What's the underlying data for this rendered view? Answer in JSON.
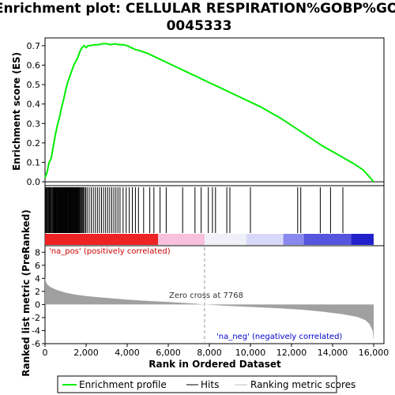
{
  "chart_data": [
    {
      "type": "line",
      "title_line1": "Enrichment plot: CELLULAR RESPIRATION%GOBP%GO:",
      "title_line2": "0045333",
      "ylabel": "Enrichment score (ES)",
      "xlim": [
        0,
        16500
      ],
      "ylim": [
        -0.02,
        0.74
      ],
      "yticks": [
        "0.0",
        "0.1",
        "0.2",
        "0.3",
        "0.4",
        "0.5",
        "0.6",
        "0.7"
      ],
      "ytick_values": [
        0,
        0.1,
        0.2,
        0.3,
        0.4,
        0.5,
        0.6,
        0.7
      ],
      "series": [
        {
          "name": "Enrichment profile",
          "color": "#00ee00",
          "x": [
            0,
            100,
            200,
            300,
            400,
            500,
            600,
            700,
            800,
            900,
            1000,
            1100,
            1200,
            1300,
            1400,
            1500,
            1600,
            1700,
            1800,
            1900,
            2000,
            2100,
            2200,
            2400,
            2600,
            2800,
            3000,
            3200,
            3400,
            3600,
            3800,
            4000,
            4200,
            4400,
            4600,
            5000,
            5500,
            6000,
            6500,
            7000,
            7500,
            8000,
            8500,
            9000,
            9500,
            10000,
            10500,
            11000,
            11500,
            12000,
            12500,
            13000,
            13500,
            14000,
            14500,
            15000,
            15500,
            16000
          ],
          "y": [
            0.02,
            0.05,
            0.1,
            0.12,
            0.18,
            0.24,
            0.29,
            0.33,
            0.38,
            0.42,
            0.47,
            0.51,
            0.54,
            0.57,
            0.6,
            0.62,
            0.64,
            0.67,
            0.69,
            0.7,
            0.69,
            0.7,
            0.7,
            0.705,
            0.705,
            0.71,
            0.71,
            0.705,
            0.71,
            0.705,
            0.705,
            0.7,
            0.69,
            0.68,
            0.675,
            0.66,
            0.635,
            0.61,
            0.585,
            0.56,
            0.535,
            0.51,
            0.485,
            0.46,
            0.435,
            0.41,
            0.385,
            0.355,
            0.325,
            0.29,
            0.255,
            0.22,
            0.185,
            0.155,
            0.125,
            0.095,
            0.06,
            0.0
          ]
        }
      ]
    },
    {
      "type": "barcode",
      "hits_note": "gene set member positions (ranks)",
      "hits": [
        40,
        70,
        110,
        150,
        190,
        230,
        260,
        300,
        340,
        380,
        410,
        440,
        470,
        500,
        530,
        560,
        590,
        620,
        650,
        680,
        710,
        740,
        770,
        800,
        830,
        860,
        890,
        920,
        950,
        980,
        1010,
        1040,
        1070,
        1100,
        1130,
        1160,
        1190,
        1220,
        1250,
        1280,
        1310,
        1340,
        1370,
        1400,
        1430,
        1460,
        1490,
        1520,
        1550,
        1580,
        1610,
        1640,
        1670,
        1700,
        1740,
        1780,
        1820,
        1870,
        1920,
        1980,
        2050,
        2150,
        2250,
        2350,
        2450,
        2550,
        2650,
        2750,
        2850,
        2950,
        3050,
        3150,
        3250,
        3350,
        3450,
        3550,
        3650,
        3800,
        3950,
        4100,
        4250,
        4400,
        4550,
        4800,
        5100,
        5300,
        5600,
        5900,
        6700,
        7300,
        7600,
        7950,
        8150,
        8300,
        8850,
        9000,
        10000,
        12300,
        12450,
        13400,
        13900,
        14500
      ]
    },
    {
      "type": "heatmap",
      "colorbar": [
        {
          "from": 0,
          "to": 5500,
          "color": "#ee2222"
        },
        {
          "from": 5500,
          "to": 7768,
          "color": "#f8c0dc"
        },
        {
          "from": 7768,
          "to": 9800,
          "color": "#f0f0f8"
        },
        {
          "from": 9800,
          "to": 11600,
          "color": "#d8d8f8"
        },
        {
          "from": 11600,
          "to": 12600,
          "color": "#8888ee"
        },
        {
          "from": 12600,
          "to": 14900,
          "color": "#5555dd"
        },
        {
          "from": 14900,
          "to": 16000,
          "color": "#2222cc"
        }
      ]
    },
    {
      "type": "area",
      "ylabel": "Ranked list metric (PreRanked)",
      "xlabel": "Rank in Ordered Dataset",
      "xlim": [
        0,
        16500
      ],
      "ylim": [
        -6,
        9
      ],
      "xticks": [
        "0",
        "2,000",
        "4,000",
        "6,000",
        "8,000",
        "10,000",
        "12,000",
        "14,000",
        "16,000"
      ],
      "xtick_values": [
        0,
        2000,
        4000,
        6000,
        8000,
        10000,
        12000,
        14000,
        16000
      ],
      "yticks": [
        "-6",
        "-4",
        "-2",
        "0",
        "2",
        "4",
        "6",
        "8"
      ],
      "ytick_values": [
        -6,
        -4,
        -2,
        0,
        2,
        4,
        6,
        8
      ],
      "series": [
        {
          "name": "Ranking metric scores",
          "color": "#a0a0a0",
          "x": [
            0,
            30,
            100,
            250,
            500,
            1000,
            1500,
            2000,
            3000,
            4000,
            5000,
            6000,
            7000,
            7768,
            8500,
            9500,
            10500,
            11500,
            12500,
            13500,
            14500,
            15200,
            15600,
            15800,
            15950,
            16000
          ],
          "y": [
            4.2,
            3.6,
            3.1,
            2.7,
            2.3,
            1.8,
            1.5,
            1.3,
            1.0,
            0.75,
            0.55,
            0.38,
            0.2,
            0.0,
            -0.15,
            -0.3,
            -0.45,
            -0.6,
            -0.8,
            -1.1,
            -1.5,
            -1.9,
            -2.4,
            -3.0,
            -4.0,
            -5.5
          ]
        }
      ],
      "zero_cross_label": "Zero cross at 7768",
      "zero_cross_rank": 7768,
      "pos_label": "'na_pos' (positively correlated)",
      "neg_label": "'na_neg' (negatively correlated)"
    }
  ],
  "legend": {
    "items": [
      {
        "label": "Enrichment profile",
        "color": "#00ee00"
      },
      {
        "label": "Hits",
        "color": "#000000"
      },
      {
        "label": "Ranking metric scores",
        "color": "#c0c0c0"
      }
    ]
  }
}
